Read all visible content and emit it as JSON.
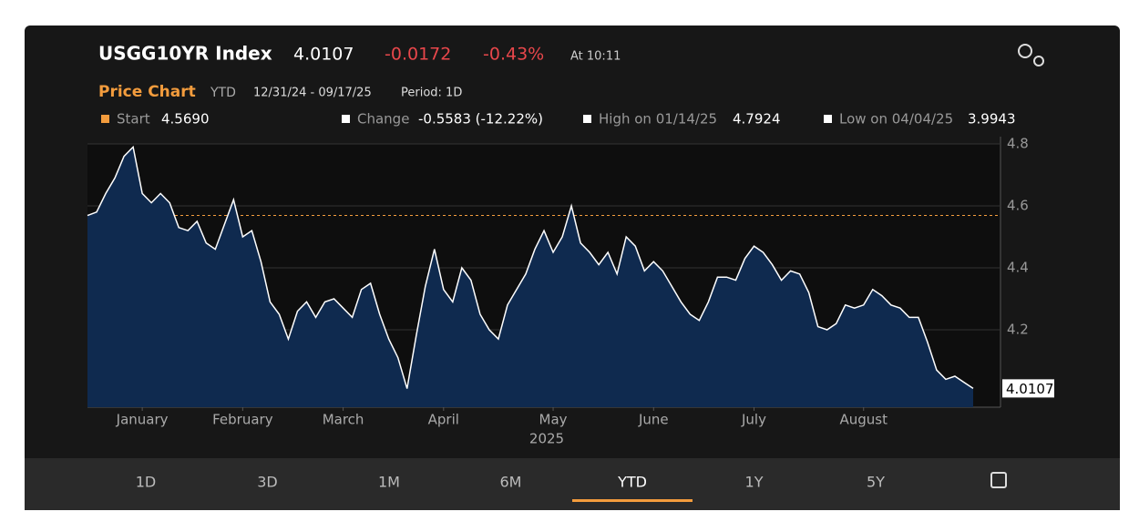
{
  "header": {
    "ticker": "USGG10YR Index",
    "price": "4.0107",
    "change": "-0.0172",
    "change_pct": "-0.43%",
    "time": "At 10:11"
  },
  "subheader": {
    "title": "Price Chart",
    "range": "YTD",
    "dates": "12/31/24 - 09/17/25",
    "period": "Period: 1D"
  },
  "stats": {
    "start": {
      "name": "Start",
      "value": 4.569,
      "value_label": "4.5690"
    },
    "change": {
      "name": "Change",
      "text": "-0.5583 (-12.22%)"
    },
    "high": {
      "name": "High on 01/14/25",
      "value": 4.7924
    },
    "low": {
      "name": "Low on 04/04/25",
      "value": 3.9943
    }
  },
  "chart_data": {
    "type": "area",
    "xlabel": "2025",
    "xlim": [
      0,
      97
    ],
    "xticks": [
      {
        "value": 6,
        "label": "January"
      },
      {
        "value": 17,
        "label": "February"
      },
      {
        "value": 28,
        "label": "March"
      },
      {
        "value": 39,
        "label": "April"
      },
      {
        "value": 51,
        "label": "May"
      },
      {
        "value": 62,
        "label": "June"
      },
      {
        "value": 73,
        "label": "July"
      },
      {
        "value": 85,
        "label": "August"
      }
    ],
    "ylim": [
      3.95,
      4.8
    ],
    "yticks": [
      4.2,
      4.4,
      4.6,
      4.8
    ],
    "grid": true,
    "series": [
      {
        "color": "#ffffff",
        "fill": "#0f2a4f",
        "values": [
          4.569,
          4.58,
          4.64,
          4.69,
          4.76,
          4.79,
          4.64,
          4.61,
          4.64,
          4.61,
          4.53,
          4.52,
          4.55,
          4.48,
          4.46,
          4.54,
          4.62,
          4.5,
          4.52,
          4.42,
          4.29,
          4.25,
          4.17,
          4.26,
          4.29,
          4.24,
          4.29,
          4.3,
          4.27,
          4.24,
          4.33,
          4.35,
          4.25,
          4.17,
          4.11,
          4.01,
          4.18,
          4.34,
          4.46,
          4.33,
          4.29,
          4.4,
          4.36,
          4.25,
          4.2,
          4.17,
          4.28,
          4.33,
          4.38,
          4.46,
          4.52,
          4.45,
          4.5,
          4.6,
          4.48,
          4.45,
          4.41,
          4.45,
          4.38,
          4.5,
          4.47,
          4.39,
          4.42,
          4.39,
          4.34,
          4.29,
          4.25,
          4.23,
          4.29,
          4.37,
          4.37,
          4.36,
          4.43,
          4.47,
          4.45,
          4.41,
          4.36,
          4.39,
          4.38,
          4.32,
          4.21,
          4.2,
          4.22,
          4.28,
          4.27,
          4.28,
          4.33,
          4.31,
          4.28,
          4.27,
          4.24,
          4.24,
          4.16,
          4.07,
          4.04,
          4.05,
          4.03,
          4.0107
        ]
      }
    ]
  },
  "tabs": [
    "1D",
    "3D",
    "1M",
    "6M",
    "YTD",
    "1Y",
    "5Y"
  ],
  "selected_tab": 4
}
